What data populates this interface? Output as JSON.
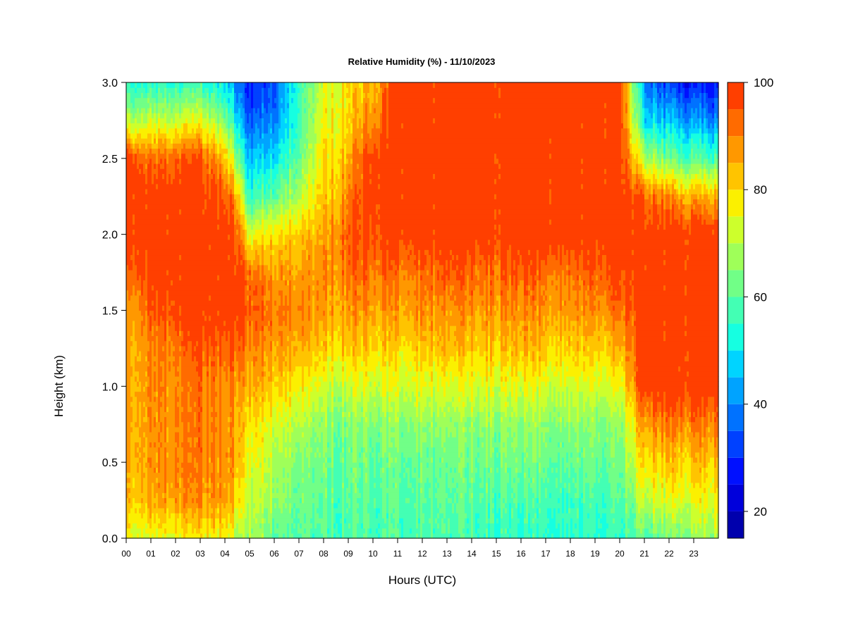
{
  "chart_data": {
    "type": "heatmap",
    "title": "Relative Humidity (%) - 11/10/2023",
    "xlabel": "Hours (UTC)",
    "ylabel": "Height (km)",
    "x_ticks": [
      "00",
      "01",
      "02",
      "03",
      "04",
      "05",
      "06",
      "07",
      "08",
      "09",
      "10",
      "11",
      "12",
      "13",
      "14",
      "15",
      "16",
      "17",
      "18",
      "19",
      "20",
      "21",
      "22",
      "23"
    ],
    "y_ticks": [
      "0.0",
      "0.5",
      "1.0",
      "1.5",
      "2.0",
      "2.5",
      "3.0"
    ],
    "xlim": [
      0,
      24
    ],
    "ylim": [
      0,
      3
    ],
    "colorbar": {
      "range": [
        15,
        100
      ],
      "ticks": [
        "20",
        "40",
        "60",
        "80",
        "100"
      ],
      "levels": [
        15,
        20,
        25,
        30,
        35,
        40,
        45,
        50,
        55,
        60,
        65,
        70,
        75,
        80,
        85,
        90,
        95,
        100
      ],
      "colors": [
        "#00007f",
        "#0000ad",
        "#0000db",
        "#0010ff",
        "#0041ff",
        "#0072ff",
        "#00a3ff",
        "#00d4ff",
        "#16ffe1",
        "#43ffb4",
        "#71ff87",
        "#9fff59",
        "#cdff2c",
        "#fbf000",
        "#ffc400",
        "#ff9800",
        "#ff6b00",
        "#ff3f00",
        "#e50000",
        "#a80000",
        "#800000"
      ]
    },
    "hours": [
      0,
      1,
      2,
      3,
      4,
      4.5,
      5,
      6,
      7,
      8,
      9,
      10,
      11,
      12,
      13,
      14,
      15,
      16,
      17,
      18,
      19,
      20,
      21,
      22,
      23,
      24
    ],
    "heights_km": [
      0,
      0.25,
      0.5,
      0.75,
      1.0,
      1.25,
      1.5,
      1.75,
      2.0,
      2.25,
      2.5,
      2.75,
      3.0
    ],
    "values": [
      [
        75,
        82,
        85,
        86,
        86,
        85,
        85,
        93,
        100,
        100,
        100,
        70,
        55
      ],
      [
        75,
        86,
        88,
        88,
        89,
        90,
        95,
        100,
        100,
        100,
        92,
        72,
        55
      ],
      [
        75,
        88,
        90,
        90,
        90,
        92,
        98,
        100,
        100,
        100,
        95,
        72,
        55
      ],
      [
        76,
        88,
        90,
        90,
        91,
        95,
        100,
        100,
        100,
        100,
        95,
        75,
        55
      ],
      [
        78,
        88,
        90,
        90,
        90,
        95,
        100,
        100,
        100,
        96,
        85,
        65,
        50
      ],
      [
        70,
        80,
        85,
        85,
        88,
        95,
        100,
        100,
        95,
        85,
        65,
        50,
        38
      ],
      [
        68,
        72,
        75,
        80,
        86,
        90,
        95,
        92,
        75,
        55,
        45,
        35,
        28
      ],
      [
        62,
        68,
        70,
        75,
        82,
        88,
        92,
        88,
        80,
        62,
        50,
        40,
        35
      ],
      [
        58,
        60,
        62,
        68,
        76,
        84,
        88,
        85,
        80,
        68,
        60,
        55,
        55
      ],
      [
        58,
        60,
        62,
        65,
        72,
        80,
        86,
        88,
        85,
        80,
        78,
        75,
        72
      ],
      [
        58,
        60,
        62,
        65,
        72,
        82,
        88,
        92,
        95,
        90,
        85,
        80,
        80
      ],
      [
        58,
        60,
        62,
        66,
        74,
        82,
        88,
        93,
        97,
        100,
        100,
        90,
        85
      ],
      [
        58,
        60,
        62,
        66,
        74,
        80,
        87,
        92,
        100,
        100,
        100,
        100,
        100
      ],
      [
        58,
        60,
        62,
        66,
        74,
        82,
        88,
        92,
        100,
        100,
        100,
        100,
        100
      ],
      [
        58,
        60,
        62,
        66,
        74,
        84,
        88,
        95,
        100,
        100,
        100,
        100,
        100
      ],
      [
        57,
        60,
        62,
        66,
        74,
        82,
        88,
        93,
        100,
        100,
        100,
        100,
        100
      ],
      [
        56,
        59,
        62,
        66,
        74,
        82,
        88,
        92,
        100,
        100,
        100,
        100,
        100
      ],
      [
        55,
        58,
        62,
        66,
        74,
        84,
        88,
        95,
        100,
        100,
        100,
        100,
        100
      ],
      [
        55,
        58,
        62,
        66,
        74,
        82,
        88,
        93,
        100,
        100,
        100,
        100,
        100
      ],
      [
        55,
        58,
        62,
        66,
        74,
        82,
        88,
        93,
        100,
        100,
        100,
        100,
        100
      ],
      [
        55,
        58,
        62,
        66,
        74,
        82,
        90,
        95,
        100,
        100,
        100,
        100,
        100
      ],
      [
        55,
        58,
        62,
        66,
        74,
        84,
        92,
        97,
        100,
        100,
        100,
        100,
        100
      ],
      [
        60,
        72,
        80,
        88,
        100,
        100,
        100,
        100,
        100,
        95,
        70,
        50,
        40
      ],
      [
        62,
        74,
        82,
        90,
        100,
        100,
        100,
        100,
        100,
        88,
        62,
        45,
        32
      ],
      [
        65,
        75,
        82,
        90,
        100,
        100,
        100,
        100,
        100,
        85,
        60,
        42,
        28
      ],
      [
        68,
        76,
        82,
        90,
        100,
        100,
        100,
        100,
        100,
        84,
        58,
        40,
        26
      ]
    ]
  }
}
